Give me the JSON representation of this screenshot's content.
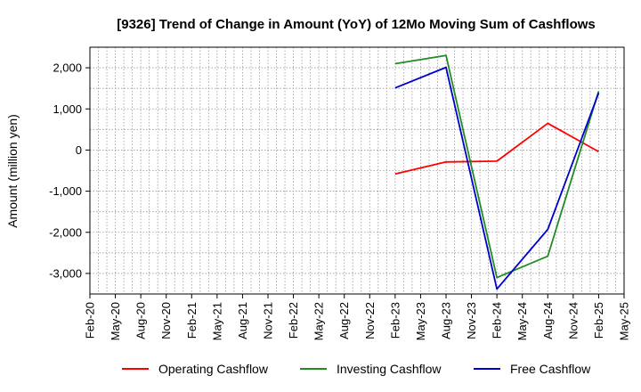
{
  "chart_data": {
    "type": "line",
    "title": "[9326]  Trend of Change in Amount (YoY) of 12Mo Moving Sum of Cashflows",
    "xlabel": "",
    "ylabel": "Amount (million yen)",
    "x_ticks": [
      "Feb-20",
      "May-20",
      "Aug-20",
      "Nov-20",
      "Feb-21",
      "May-21",
      "Aug-21",
      "Nov-21",
      "Feb-22",
      "May-22",
      "Aug-22",
      "Nov-22",
      "Feb-23",
      "May-23",
      "Aug-23",
      "Nov-23",
      "Feb-24",
      "May-24",
      "Aug-24",
      "Nov-24",
      "Feb-25",
      "May-25"
    ],
    "y_ticks": [
      2000,
      1000,
      0,
      -1000,
      -2000,
      -3000
    ],
    "y_tick_labels": [
      "2,000",
      "1,000",
      "0",
      "-1,000",
      "-2,000",
      "-3,000"
    ],
    "ylim": [
      -3500,
      2500
    ],
    "grid": true,
    "legend_position": "bottom",
    "series": [
      {
        "name": "Operating Cashflow",
        "color": "#ff0000",
        "x": [
          "Feb-23",
          "Aug-23",
          "Feb-24",
          "Aug-24",
          "Feb-25"
        ],
        "values": [
          -580,
          -290,
          -270,
          650,
          -40
        ]
      },
      {
        "name": "Investing Cashflow",
        "color": "#228b22",
        "x": [
          "Feb-23",
          "Aug-23",
          "Feb-24",
          "Aug-24",
          "Feb-25"
        ],
        "values": [
          2100,
          2300,
          -3100,
          -2580,
          1430
        ]
      },
      {
        "name": "Free Cashflow",
        "color": "#0000cd",
        "x": [
          "Feb-23",
          "Aug-23",
          "Feb-24",
          "Aug-24",
          "Feb-25"
        ],
        "values": [
          1510,
          2010,
          -3380,
          -1930,
          1390
        ]
      }
    ]
  }
}
